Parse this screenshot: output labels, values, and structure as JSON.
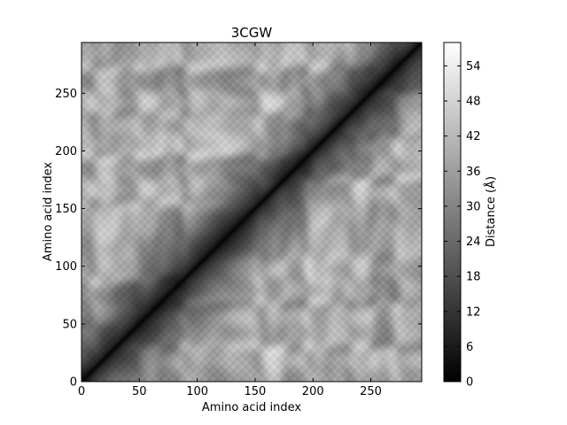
{
  "chart_data": {
    "type": "heatmap",
    "title": "3CGW",
    "xlabel": "Amino acid index",
    "ylabel": "Amino acid index",
    "colorbar_label": "Distance (Å)",
    "colormap": "gray",
    "n_residues": 294,
    "xlim": [
      0,
      294
    ],
    "ylim": [
      0,
      294
    ],
    "vmin": 0,
    "vmax": 58,
    "x_ticks": [
      0,
      50,
      100,
      150,
      200,
      250
    ],
    "y_ticks": [
      0,
      50,
      100,
      150,
      200,
      250
    ],
    "colorbar_ticks": [
      0,
      6,
      12,
      18,
      24,
      30,
      36,
      42,
      48,
      54
    ],
    "diagonal_value": 0
  }
}
